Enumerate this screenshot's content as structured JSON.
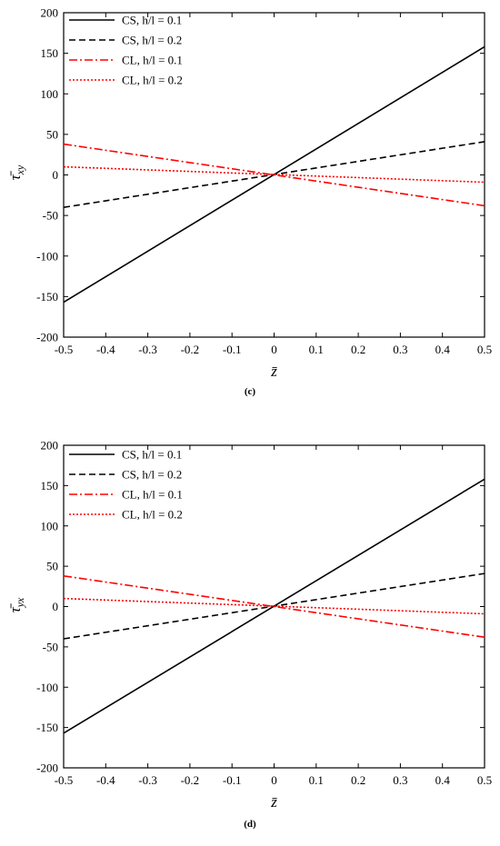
{
  "chart_data": [
    {
      "type": "line",
      "caption": "(c)",
      "xlabel": "z̄",
      "ylabel": "τ̄",
      "ylabel_sub": "xy",
      "xlim": [
        -0.5,
        0.5
      ],
      "ylim": [
        -200,
        200
      ],
      "xticks": [
        -0.5,
        -0.4,
        -0.3,
        -0.2,
        -0.1,
        0,
        0.1,
        0.2,
        0.3,
        0.4,
        0.5
      ],
      "xtick_labels": [
        "-0.5",
        "-0.4",
        "-0.3",
        "-0.2",
        "-0.1",
        "0",
        "0.1",
        "0.2",
        "0.3",
        "0.4",
        "0.5"
      ],
      "yticks": [
        -200,
        -150,
        -100,
        -50,
        0,
        50,
        100,
        150,
        200
      ],
      "ytick_labels": [
        "-200",
        "-150",
        "-100",
        "-50",
        "0",
        "50",
        "100",
        "150",
        "200"
      ],
      "grid": false,
      "legend_position": "top-left",
      "series": [
        {
          "name": "CS, h/l = 0.1",
          "color": "#000000",
          "dash": "solid",
          "x": [
            -0.5,
            0.5
          ],
          "y": [
            -157,
            158
          ]
        },
        {
          "name": "CS, h/l = 0.2",
          "color": "#000000",
          "dash": "dashed",
          "x": [
            -0.5,
            0.5
          ],
          "y": [
            -40,
            41
          ]
        },
        {
          "name": "CL, h/l = 0.1",
          "color": "#ff0000",
          "dash": "dashdot",
          "x": [
            -0.5,
            0.5
          ],
          "y": [
            38,
            -38
          ]
        },
        {
          "name": "CL, h/l = 0.2",
          "color": "#ff0000",
          "dash": "dotted",
          "x": [
            -0.5,
            0.5
          ],
          "y": [
            10,
            -9
          ]
        }
      ]
    },
    {
      "type": "line",
      "caption": "(d)",
      "xlabel": "z̄",
      "ylabel": "τ̄",
      "ylabel_sub": "yx",
      "xlim": [
        -0.5,
        0.5
      ],
      "ylim": [
        -200,
        200
      ],
      "xticks": [
        -0.5,
        -0.4,
        -0.3,
        -0.2,
        -0.1,
        0,
        0.1,
        0.2,
        0.3,
        0.4,
        0.5
      ],
      "xtick_labels": [
        "-0.5",
        "-0.4",
        "-0.3",
        "-0.2",
        "-0.1",
        "0",
        "0.1",
        "0.2",
        "0.3",
        "0.4",
        "0.5"
      ],
      "yticks": [
        -200,
        -150,
        -100,
        -50,
        0,
        50,
        100,
        150,
        200
      ],
      "ytick_labels": [
        "-200",
        "-150",
        "-100",
        "-50",
        "0",
        "50",
        "100",
        "150",
        "200"
      ],
      "grid": false,
      "legend_position": "top-left",
      "series": [
        {
          "name": "CS, h/l = 0.1",
          "color": "#000000",
          "dash": "solid",
          "x": [
            -0.5,
            0.5
          ],
          "y": [
            -157,
            158
          ]
        },
        {
          "name": "CS, h/l = 0.2",
          "color": "#000000",
          "dash": "dashed",
          "x": [
            -0.5,
            0.5
          ],
          "y": [
            -40,
            41
          ]
        },
        {
          "name": "CL, h/l = 0.1",
          "color": "#ff0000",
          "dash": "dashdot",
          "x": [
            -0.5,
            0.5
          ],
          "y": [
            38,
            -38
          ]
        },
        {
          "name": "CL, h/l = 0.2",
          "color": "#ff0000",
          "dash": "dotted",
          "x": [
            -0.5,
            0.5
          ],
          "y": [
            10,
            -9
          ]
        }
      ]
    }
  ]
}
